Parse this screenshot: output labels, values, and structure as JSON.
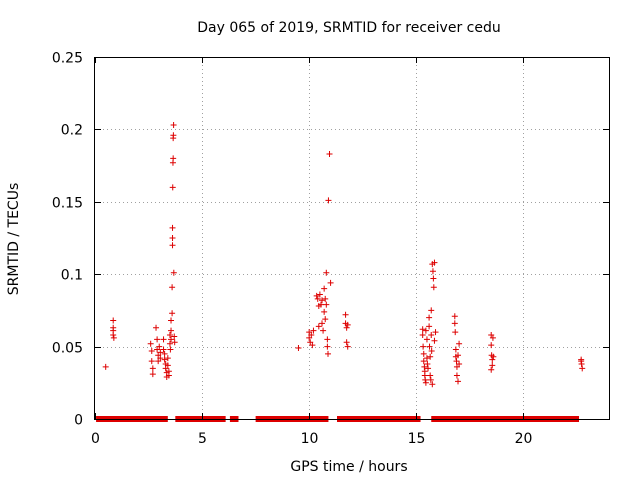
{
  "chart_data": {
    "type": "scatter",
    "title": "Day 065 of 2019, SRMTID for receiver cedu",
    "xlabel": "GPS time / hours",
    "ylabel": "SRMTID / TECUs",
    "xlim": [
      0,
      24
    ],
    "ylim": [
      0,
      0.25
    ],
    "grid": true,
    "marker": "+",
    "color": "#dd0000",
    "xticks": [
      0,
      5,
      10,
      15,
      20
    ],
    "xtick_labels": [
      "0",
      "5",
      "10",
      "15",
      "20"
    ],
    "yticks": [
      0,
      0.05,
      0.1,
      0.15,
      0.2,
      0.25
    ],
    "ytick_labels": [
      "0",
      "0.05",
      "0.1",
      "0.15",
      "0.2",
      "0.25"
    ],
    "zero_segments": [
      [
        0.05,
        3.4
      ],
      [
        3.75,
        6.1
      ],
      [
        6.3,
        6.7
      ],
      [
        7.5,
        10.9
      ],
      [
        11.3,
        15.2
      ],
      [
        15.7,
        22.6
      ]
    ],
    "points": [
      [
        0.5,
        0.036
      ],
      [
        0.85,
        0.068
      ],
      [
        0.85,
        0.063
      ],
      [
        0.85,
        0.061
      ],
      [
        0.85,
        0.058
      ],
      [
        0.88,
        0.056
      ],
      [
        2.6,
        0.052
      ],
      [
        2.65,
        0.047
      ],
      [
        2.65,
        0.04
      ],
      [
        2.7,
        0.035
      ],
      [
        2.7,
        0.031
      ],
      [
        2.85,
        0.063
      ],
      [
        2.9,
        0.055
      ],
      [
        2.9,
        0.048
      ],
      [
        2.95,
        0.044
      ],
      [
        2.95,
        0.04
      ],
      [
        3.0,
        0.05
      ],
      [
        3.05,
        0.046
      ],
      [
        3.05,
        0.042
      ],
      [
        3.2,
        0.055
      ],
      [
        3.2,
        0.048
      ],
      [
        3.25,
        0.045
      ],
      [
        3.25,
        0.041
      ],
      [
        3.3,
        0.038
      ],
      [
        3.3,
        0.035
      ],
      [
        3.35,
        0.032
      ],
      [
        3.35,
        0.029
      ],
      [
        3.4,
        0.042
      ],
      [
        3.4,
        0.037
      ],
      [
        3.45,
        0.033
      ],
      [
        3.45,
        0.03
      ],
      [
        3.5,
        0.058
      ],
      [
        3.5,
        0.052
      ],
      [
        3.52,
        0.048
      ],
      [
        3.55,
        0.068
      ],
      [
        3.55,
        0.061
      ],
      [
        3.55,
        0.055
      ],
      [
        3.6,
        0.073
      ],
      [
        3.6,
        0.091
      ],
      [
        3.62,
        0.12
      ],
      [
        3.62,
        0.125
      ],
      [
        3.62,
        0.132
      ],
      [
        3.63,
        0.16
      ],
      [
        3.64,
        0.177
      ],
      [
        3.65,
        0.18
      ],
      [
        3.65,
        0.194
      ],
      [
        3.66,
        0.196
      ],
      [
        3.67,
        0.203
      ],
      [
        3.68,
        0.101
      ],
      [
        3.7,
        0.057
      ],
      [
        3.72,
        0.053
      ],
      [
        9.5,
        0.049
      ],
      [
        10.0,
        0.06
      ],
      [
        10.0,
        0.056
      ],
      [
        10.05,
        0.053
      ],
      [
        10.1,
        0.058
      ],
      [
        10.15,
        0.051
      ],
      [
        10.2,
        0.061
      ],
      [
        10.35,
        0.085
      ],
      [
        10.4,
        0.083
      ],
      [
        10.45,
        0.078
      ],
      [
        10.45,
        0.064
      ],
      [
        10.5,
        0.086
      ],
      [
        10.55,
        0.079
      ],
      [
        10.6,
        0.082
      ],
      [
        10.6,
        0.066
      ],
      [
        10.65,
        0.061
      ],
      [
        10.7,
        0.09
      ],
      [
        10.7,
        0.074
      ],
      [
        10.75,
        0.083
      ],
      [
        10.75,
        0.069
      ],
      [
        10.8,
        0.101
      ],
      [
        10.8,
        0.079
      ],
      [
        10.85,
        0.055
      ],
      [
        10.85,
        0.05
      ],
      [
        10.88,
        0.045
      ],
      [
        10.9,
        0.151
      ],
      [
        10.95,
        0.183
      ],
      [
        11.0,
        0.094
      ],
      [
        11.7,
        0.072
      ],
      [
        11.7,
        0.066
      ],
      [
        11.75,
        0.063
      ],
      [
        11.75,
        0.053
      ],
      [
        11.8,
        0.05
      ],
      [
        11.8,
        0.065
      ],
      [
        15.3,
        0.062
      ],
      [
        15.3,
        0.058
      ],
      [
        15.32,
        0.05
      ],
      [
        15.35,
        0.045
      ],
      [
        15.35,
        0.04
      ],
      [
        15.38,
        0.036
      ],
      [
        15.4,
        0.033
      ],
      [
        15.4,
        0.03
      ],
      [
        15.42,
        0.027
      ],
      [
        15.45,
        0.025
      ],
      [
        15.45,
        0.061
      ],
      [
        15.5,
        0.055
      ],
      [
        15.5,
        0.042
      ],
      [
        15.52,
        0.038
      ],
      [
        15.55,
        0.035
      ],
      [
        15.6,
        0.07
      ],
      [
        15.6,
        0.064
      ],
      [
        15.62,
        0.05
      ],
      [
        15.65,
        0.043
      ],
      [
        15.65,
        0.03
      ],
      [
        15.68,
        0.027
      ],
      [
        15.7,
        0.075
      ],
      [
        15.7,
        0.058
      ],
      [
        15.72,
        0.047
      ],
      [
        15.75,
        0.024
      ],
      [
        15.75,
        0.107
      ],
      [
        15.78,
        0.102
      ],
      [
        15.8,
        0.097
      ],
      [
        15.82,
        0.091
      ],
      [
        15.85,
        0.108
      ],
      [
        15.85,
        0.054
      ],
      [
        15.9,
        0.06
      ],
      [
        16.8,
        0.071
      ],
      [
        16.8,
        0.066
      ],
      [
        16.82,
        0.06
      ],
      [
        16.85,
        0.048
      ],
      [
        16.85,
        0.043
      ],
      [
        16.88,
        0.04
      ],
      [
        16.9,
        0.036
      ],
      [
        16.9,
        0.03
      ],
      [
        16.95,
        0.026
      ],
      [
        16.95,
        0.044
      ],
      [
        17.0,
        0.052
      ],
      [
        17.0,
        0.038
      ],
      [
        18.5,
        0.058
      ],
      [
        18.5,
        0.051
      ],
      [
        18.52,
        0.044
      ],
      [
        18.55,
        0.041
      ],
      [
        18.55,
        0.037
      ],
      [
        18.5,
        0.034
      ],
      [
        18.58,
        0.056
      ],
      [
        18.6,
        0.043
      ],
      [
        22.7,
        0.041
      ],
      [
        22.72,
        0.038
      ],
      [
        22.75,
        0.035
      ],
      [
        22.7,
        0.04
      ]
    ]
  }
}
